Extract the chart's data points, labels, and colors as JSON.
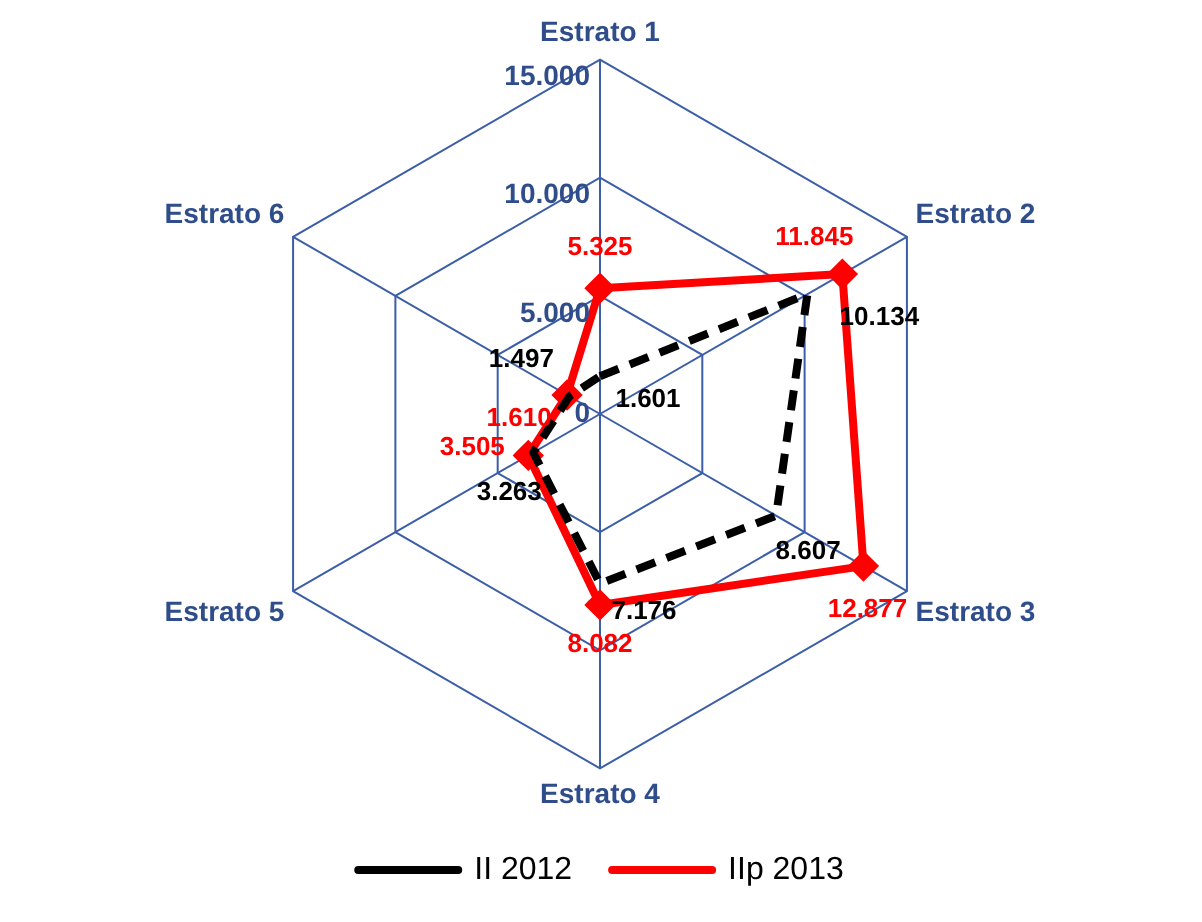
{
  "chart_data": {
    "type": "radar",
    "categories": [
      "Estrato 1",
      "Estrato 2",
      "Estrato 3",
      "Estrato 4",
      "Estrato 5",
      "Estrato 6"
    ],
    "series": [
      {
        "name": "II 2012",
        "color": "#000000",
        "line_style": "dashed",
        "marker": "none",
        "values": [
          1601,
          10134,
          8607,
          7176,
          3263,
          1497
        ],
        "value_labels": [
          "1.601",
          "10.134",
          "8.607",
          "7.176",
          "3.263",
          "1.497"
        ]
      },
      {
        "name": "IIp 2013",
        "color": "#ff0000",
        "line_style": "solid",
        "marker": "diamond",
        "values": [
          5325,
          11845,
          12877,
          8082,
          3505,
          1610
        ],
        "value_labels": [
          "5.325",
          "11.845",
          "12.877",
          "8.082",
          "3.505",
          "1.610"
        ]
      }
    ],
    "ylim": [
      0,
      15000
    ],
    "yticks": [
      0,
      {
        "value": 5000,
        "label": "5.000"
      },
      {
        "value": 10000,
        "label": "10.000"
      },
      {
        "value": 15000,
        "label": "15.000"
      }
    ],
    "grid": true,
    "legend": "bottom"
  }
}
